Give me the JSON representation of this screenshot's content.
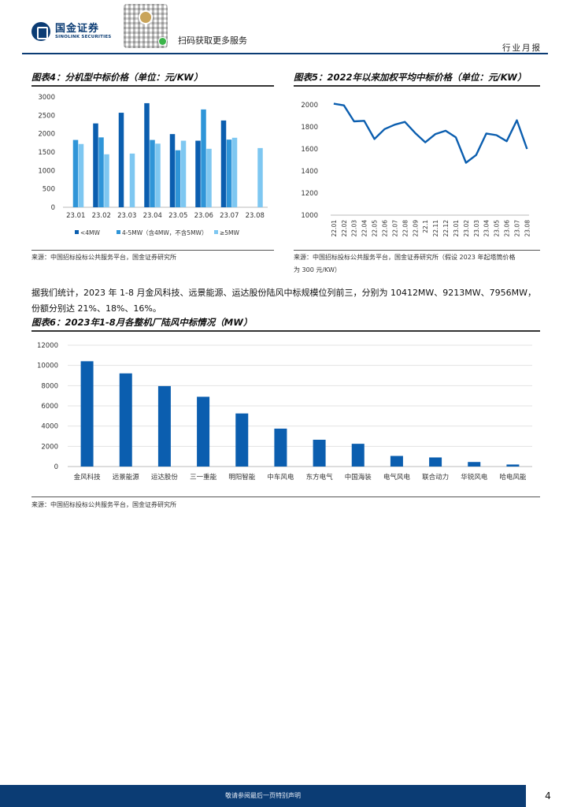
{
  "header": {
    "logo_cn": "国金证券",
    "logo_en": "SINOLINK SECURITIES",
    "qr_text": "扫码获取更多服务",
    "report_type": "行业月报"
  },
  "figures": {
    "fig4_title": "图表4：分机型中标价格（单位：元/KW）",
    "fig5_title": "图表5：2022年以来加权平均中标价格（单位：元/KW）",
    "fig6_title": "图表6：2023年1-8月各整机厂陆风中标情况（MW）",
    "fig4_source": "来源：中国招标投标公共服务平台，国金证券研究所",
    "fig5_source_line1": "来源：中国招标投标公共服务平台，国金证券研究所（假设 2023 年起塔筒价格",
    "fig5_source_line2": "为 300 元/KW）",
    "fig6_source": "来源：中国招标投标公共服务平台，国金证券研究所"
  },
  "paragraph": {
    "line1": "据我们统计，2023 年 1-8 月金风科技、远景能源、运达股份陆风中标规模位列前三，分别为 10412MW、9213MW、7956MW，",
    "line2": "份额分别达 21%、18%、16%。"
  },
  "chart_data": [
    {
      "type": "bar",
      "categories": [
        "23.01",
        "23.02",
        "23.03",
        "23.04",
        "23.05",
        "23.06",
        "23.07",
        "23.08"
      ],
      "series": [
        {
          "name": "<4MW",
          "values": [
            null,
            2280,
            2570,
            2830,
            1990,
            1810,
            2360,
            null
          ],
          "color": "#0b5eaf"
        },
        {
          "name": "4-5MW（含4MW，不含5MW）",
          "values": [
            1830,
            1900,
            null,
            1830,
            1550,
            2660,
            1840,
            null
          ],
          "color": "#2f95d8"
        },
        {
          "name": "≥5MW",
          "values": [
            1720,
            1440,
            1460,
            1730,
            1810,
            1590,
            1890,
            1610
          ],
          "color": "#7ec7f1"
        }
      ],
      "ylim": [
        0,
        3000
      ],
      "yticks": [
        0,
        500,
        1000,
        1500,
        2000,
        2500,
        3000
      ],
      "legend": "bottom",
      "grid": false
    },
    {
      "type": "line",
      "categories": [
        "22.01",
        "22.02",
        "22.03",
        "22.04",
        "22.05",
        "22.06",
        "22.07",
        "22.08",
        "22.09",
        "22.10",
        "22.11",
        "22.12",
        "23.01",
        "23.02",
        "23.03",
        "23.04",
        "23.05",
        "23.06",
        "23.07",
        "23.08"
      ],
      "category_labels": [
        "22.01",
        "22.02",
        "22.03",
        "22.04",
        "22.05",
        "22.06",
        "22.07",
        "22.08",
        "22.09",
        "22.1",
        "22.11",
        "22.12",
        "23.01",
        "23.02",
        "23.03",
        "23.04",
        "23.05",
        "23.06",
        "23.07",
        "23.08"
      ],
      "series": [
        {
          "values": [
            2010,
            1995,
            1850,
            1855,
            1690,
            1780,
            1820,
            1845,
            1745,
            1660,
            1735,
            1765,
            1705,
            1475,
            1545,
            1740,
            1725,
            1670,
            1860,
            1600
          ],
          "color": "#0b5eaf"
        }
      ],
      "ylim": [
        1000,
        2000
      ],
      "yticks": [
        1000,
        1200,
        1400,
        1600,
        1800,
        2000
      ],
      "grid": false
    },
    {
      "type": "bar",
      "categories": [
        "金风科技",
        "远景能源",
        "运达股份",
        "三一重能",
        "明阳智能",
        "中车风电",
        "东方电气",
        "中国海装",
        "电气风电",
        "联合动力",
        "华锐风电",
        "哈电风能"
      ],
      "values": [
        10412,
        9213,
        7956,
        6900,
        5250,
        3750,
        2650,
        2250,
        1050,
        900,
        450,
        200
      ],
      "color": "#0b5eaf",
      "ylim": [
        0,
        12000
      ],
      "yticks": [
        0,
        2000,
        4000,
        6000,
        8000,
        10000,
        12000
      ],
      "grid": true
    }
  ],
  "footer": {
    "disclaimer": "敬请参阅最后一页特别声明",
    "page": "4"
  }
}
